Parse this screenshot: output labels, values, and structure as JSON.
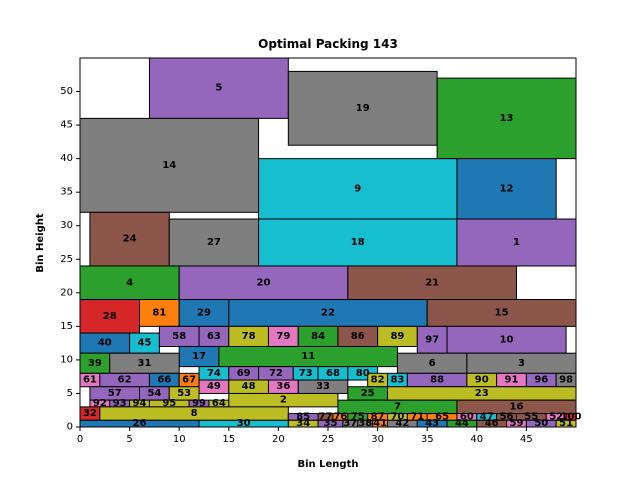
{
  "chart_data": {
    "type": "rectangle-packing",
    "title": "Optimal Packing 143",
    "xlabel": "Bin Length",
    "ylabel": "Bin Height",
    "xlim": [
      0,
      50
    ],
    "ylim": [
      0,
      55
    ],
    "xticks": [
      0,
      5,
      10,
      15,
      20,
      25,
      30,
      35,
      40,
      45
    ],
    "yticks": [
      0,
      5,
      10,
      15,
      20,
      25,
      30,
      35,
      40,
      45,
      50
    ],
    "grid": false,
    "rects": [
      {
        "id": "5",
        "x": 7,
        "y": 46,
        "w": 14,
        "h": 9,
        "color": "#9467bd"
      },
      {
        "id": "19",
        "x": 21,
        "y": 42,
        "w": 15,
        "h": 11,
        "color": "#7f7f7f"
      },
      {
        "id": "13",
        "x": 36,
        "y": 40,
        "w": 14,
        "h": 12,
        "color": "#2ca02c"
      },
      {
        "id": "14",
        "x": 0,
        "y": 32,
        "w": 18,
        "h": 14,
        "color": "#7f7f7f"
      },
      {
        "id": "9",
        "x": 18,
        "y": 31,
        "w": 20,
        "h": 9,
        "color": "#17becf"
      },
      {
        "id": "12",
        "x": 38,
        "y": 31,
        "w": 10,
        "h": 9,
        "color": "#1f77b4"
      },
      {
        "id": "24",
        "x": 1,
        "y": 24,
        "w": 8,
        "h": 8,
        "color": "#8c564b"
      },
      {
        "id": "27",
        "x": 9,
        "y": 24,
        "w": 9,
        "h": 7,
        "color": "#7f7f7f"
      },
      {
        "id": "18",
        "x": 18,
        "y": 24,
        "w": 20,
        "h": 7,
        "color": "#17becf"
      },
      {
        "id": "1",
        "x": 38,
        "y": 24,
        "w": 12,
        "h": 7,
        "color": "#9467bd"
      },
      {
        "id": "4",
        "x": 0,
        "y": 19,
        "w": 10,
        "h": 5,
        "color": "#2ca02c"
      },
      {
        "id": "20",
        "x": 10,
        "y": 19,
        "w": 17,
        "h": 5,
        "color": "#9467bd"
      },
      {
        "id": "21",
        "x": 27,
        "y": 19,
        "w": 17,
        "h": 5,
        "color": "#8c564b"
      },
      {
        "id": "28",
        "x": 0,
        "y": 14,
        "w": 6,
        "h": 5,
        "color": "#d62728"
      },
      {
        "id": "81",
        "x": 6,
        "y": 15,
        "w": 4,
        "h": 4,
        "color": "#ff7f0e"
      },
      {
        "id": "29",
        "x": 10,
        "y": 15,
        "w": 5,
        "h": 4,
        "color": "#1f77b4"
      },
      {
        "id": "22",
        "x": 15,
        "y": 15,
        "w": 20,
        "h": 4,
        "color": "#1f77b4"
      },
      {
        "id": "15",
        "x": 35,
        "y": 15,
        "w": 15,
        "h": 4,
        "color": "#8c564b"
      },
      {
        "id": "40",
        "x": 0,
        "y": 11,
        "w": 5,
        "h": 3,
        "color": "#1f77b4"
      },
      {
        "id": "45",
        "x": 5,
        "y": 11,
        "w": 3,
        "h": 3,
        "color": "#17becf"
      },
      {
        "id": "58",
        "x": 8,
        "y": 12,
        "w": 4,
        "h": 3,
        "color": "#9467bd"
      },
      {
        "id": "63",
        "x": 12,
        "y": 12,
        "w": 3,
        "h": 3,
        "color": "#9467bd"
      },
      {
        "id": "78",
        "x": 15,
        "y": 12,
        "w": 4,
        "h": 3,
        "color": "#bcbd22"
      },
      {
        "id": "79",
        "x": 19,
        "y": 12,
        "w": 3,
        "h": 3,
        "color": "#e377c2"
      },
      {
        "id": "84",
        "x": 22,
        "y": 12,
        "w": 4,
        "h": 3,
        "color": "#2ca02c"
      },
      {
        "id": "86",
        "x": 26,
        "y": 12,
        "w": 4,
        "h": 3,
        "color": "#8c564b"
      },
      {
        "id": "89",
        "x": 30,
        "y": 12,
        "w": 4,
        "h": 3,
        "color": "#bcbd22"
      },
      {
        "id": "97",
        "x": 34,
        "y": 11,
        "w": 3,
        "h": 4,
        "color": "#9467bd"
      },
      {
        "id": "10",
        "x": 37,
        "y": 11,
        "w": 12,
        "h": 4,
        "color": "#9467bd"
      },
      {
        "id": "17",
        "x": 10,
        "y": 9,
        "w": 4,
        "h": 3,
        "color": "#1f77b4"
      },
      {
        "id": "11",
        "x": 14,
        "y": 9,
        "w": 18,
        "h": 3,
        "color": "#2ca02c"
      },
      {
        "id": "39",
        "x": 0,
        "y": 8,
        "w": 3,
        "h": 3,
        "color": "#2ca02c"
      },
      {
        "id": "31",
        "x": 3,
        "y": 8,
        "w": 7,
        "h": 3,
        "color": "#7f7f7f"
      },
      {
        "id": "6",
        "x": 32,
        "y": 8,
        "w": 7,
        "h": 3,
        "color": "#7f7f7f"
      },
      {
        "id": "3",
        "x": 39,
        "y": 8,
        "w": 11,
        "h": 3,
        "color": "#7f7f7f"
      },
      {
        "id": "74",
        "x": 12,
        "y": 7,
        "w": 3,
        "h": 2,
        "color": "#17becf"
      },
      {
        "id": "69",
        "x": 15,
        "y": 7,
        "w": 3,
        "h": 2,
        "color": "#9467bd"
      },
      {
        "id": "72",
        "x": 18,
        "y": 7,
        "w": 3.5,
        "h": 2,
        "color": "#9467bd"
      },
      {
        "id": "73",
        "x": 21.5,
        "y": 7,
        "w": 2.5,
        "h": 2,
        "color": "#17becf"
      },
      {
        "id": "68",
        "x": 24,
        "y": 7,
        "w": 3,
        "h": 2,
        "color": "#17becf"
      },
      {
        "id": "80",
        "x": 27,
        "y": 7,
        "w": 3,
        "h": 2,
        "color": "#17becf"
      },
      {
        "id": "61",
        "x": 0,
        "y": 6,
        "w": 2,
        "h": 2,
        "color": "#e377c2"
      },
      {
        "id": "62",
        "x": 2,
        "y": 6,
        "w": 5,
        "h": 2,
        "color": "#9467bd"
      },
      {
        "id": "66",
        "x": 7,
        "y": 6,
        "w": 3,
        "h": 2,
        "color": "#1f77b4"
      },
      {
        "id": "67",
        "x": 10,
        "y": 6,
        "w": 2,
        "h": 2,
        "color": "#ff7f0e"
      },
      {
        "id": "82",
        "x": 29,
        "y": 6,
        "w": 2,
        "h": 2,
        "color": "#bcbd22"
      },
      {
        "id": "83",
        "x": 31,
        "y": 6,
        "w": 2,
        "h": 2,
        "color": "#17becf"
      },
      {
        "id": "88",
        "x": 33,
        "y": 6,
        "w": 6,
        "h": 2,
        "color": "#9467bd"
      },
      {
        "id": "90",
        "x": 39,
        "y": 6,
        "w": 3,
        "h": 2,
        "color": "#bcbd22"
      },
      {
        "id": "91",
        "x": 42,
        "y": 6,
        "w": 3,
        "h": 2,
        "color": "#e377c2"
      },
      {
        "id": "96",
        "x": 45,
        "y": 6,
        "w": 3,
        "h": 2,
        "color": "#9467bd"
      },
      {
        "id": "98",
        "x": 48,
        "y": 6,
        "w": 2,
        "h": 2,
        "color": "#7f7f7f"
      },
      {
        "id": "57",
        "x": 1,
        "y": 4,
        "w": 5,
        "h": 2,
        "color": "#9467bd"
      },
      {
        "id": "54",
        "x": 6,
        "y": 4,
        "w": 3,
        "h": 2,
        "color": "#9467bd"
      },
      {
        "id": "53",
        "x": 9,
        "y": 4,
        "w": 3,
        "h": 2,
        "color": "#bcbd22"
      },
      {
        "id": "49",
        "x": 12,
        "y": 5,
        "w": 3,
        "h": 2,
        "color": "#e377c2"
      },
      {
        "id": "48",
        "x": 15,
        "y": 5,
        "w": 4,
        "h": 2,
        "color": "#bcbd22"
      },
      {
        "id": "36",
        "x": 19,
        "y": 5,
        "w": 3,
        "h": 2,
        "color": "#e377c2"
      },
      {
        "id": "33",
        "x": 22,
        "y": 5,
        "w": 5,
        "h": 2,
        "color": "#7f7f7f"
      },
      {
        "id": "25",
        "x": 27,
        "y": 4,
        "w": 4,
        "h": 2,
        "color": "#2ca02c"
      },
      {
        "id": "23",
        "x": 31,
        "y": 4,
        "w": 19,
        "h": 2,
        "color": "#bcbd22"
      },
      {
        "id": "92",
        "x": 1,
        "y": 3,
        "w": 2,
        "h": 1,
        "color": "#e377c2"
      },
      {
        "id": "93",
        "x": 3,
        "y": 3,
        "w": 2,
        "h": 1,
        "color": "#9467bd"
      },
      {
        "id": "94",
        "x": 5,
        "y": 3,
        "w": 2,
        "h": 1,
        "color": "#bcbd22"
      },
      {
        "id": "95",
        "x": 7,
        "y": 3,
        "w": 4,
        "h": 1,
        "color": "#bcbd22"
      },
      {
        "id": "99",
        "x": 11,
        "y": 3,
        "w": 2,
        "h": 1,
        "color": "#9467bd"
      },
      {
        "id": "64",
        "x": 13,
        "y": 3,
        "w": 2,
        "h": 1,
        "color": "#bcbd22"
      },
      {
        "id": "2",
        "x": 15,
        "y": 3,
        "w": 11,
        "h": 2,
        "color": "#bcbd22"
      },
      {
        "id": "7",
        "x": 26,
        "y": 2,
        "w": 12,
        "h": 2,
        "color": "#2ca02c"
      },
      {
        "id": "16",
        "x": 38,
        "y": 2,
        "w": 12,
        "h": 2,
        "color": "#8c564b"
      },
      {
        "id": "32",
        "x": 0,
        "y": 1,
        "w": 2,
        "h": 2,
        "color": "#d62728"
      },
      {
        "id": "8",
        "x": 2,
        "y": 1,
        "w": 19,
        "h": 2,
        "color": "#bcbd22"
      },
      {
        "id": "85",
        "x": 21,
        "y": 1,
        "w": 3,
        "h": 1,
        "color": "#9467bd"
      },
      {
        "id": "77",
        "x": 24,
        "y": 1,
        "w": 1.5,
        "h": 1,
        "color": "#8c564b"
      },
      {
        "id": "76",
        "x": 25.5,
        "y": 1,
        "w": 1.5,
        "h": 1,
        "color": "#ff7f0e"
      },
      {
        "id": "75",
        "x": 27,
        "y": 1,
        "w": 2,
        "h": 1,
        "color": "#2ca02c"
      },
      {
        "id": "87",
        "x": 29,
        "y": 1,
        "w": 2,
        "h": 1,
        "color": "#ff7f0e"
      },
      {
        "id": "70",
        "x": 31,
        "y": 1,
        "w": 2,
        "h": 1,
        "color": "#bcbd22"
      },
      {
        "id": "71",
        "x": 33,
        "y": 1,
        "w": 2,
        "h": 1,
        "color": "#ff7f0e"
      },
      {
        "id": "65",
        "x": 35,
        "y": 1,
        "w": 3,
        "h": 1,
        "color": "#ff7f0e"
      },
      {
        "id": "60",
        "x": 38,
        "y": 1,
        "w": 2,
        "h": 1,
        "color": "#e377c2"
      },
      {
        "id": "47",
        "x": 40,
        "y": 1,
        "w": 2,
        "h": 1,
        "color": "#17becf"
      },
      {
        "id": "56",
        "x": 42,
        "y": 1,
        "w": 2,
        "h": 1,
        "color": "#8c564b"
      },
      {
        "id": "55",
        "x": 44,
        "y": 1,
        "w": 3,
        "h": 1,
        "color": "#8c564b"
      },
      {
        "id": "52",
        "x": 47,
        "y": 1,
        "w": 2,
        "h": 1,
        "color": "#e377c2"
      },
      {
        "id": "100",
        "x": 49,
        "y": 1,
        "w": 1,
        "h": 1,
        "color": "#d62728"
      },
      {
        "id": "26",
        "x": 0,
        "y": 0,
        "w": 12,
        "h": 1,
        "color": "#1f77b4"
      },
      {
        "id": "30",
        "x": 12,
        "y": 0,
        "w": 9,
        "h": 1,
        "color": "#17becf"
      },
      {
        "id": "34",
        "x": 21,
        "y": 0,
        "w": 3,
        "h": 1,
        "color": "#bcbd22"
      },
      {
        "id": "35",
        "x": 24,
        "y": 0,
        "w": 2.5,
        "h": 1,
        "color": "#9467bd"
      },
      {
        "id": "37",
        "x": 26.5,
        "y": 0,
        "w": 1.5,
        "h": 1,
        "color": "#7f7f7f"
      },
      {
        "id": "38",
        "x": 28,
        "y": 0,
        "w": 1.5,
        "h": 1,
        "color": "#7f7f7f"
      },
      {
        "id": "41",
        "x": 29.5,
        "y": 0,
        "w": 1.5,
        "h": 1,
        "color": "#ff7f0e"
      },
      {
        "id": "42",
        "x": 31,
        "y": 0,
        "w": 3,
        "h": 1,
        "color": "#7f7f7f"
      },
      {
        "id": "43",
        "x": 34,
        "y": 0,
        "w": 3,
        "h": 1,
        "color": "#1f77b4"
      },
      {
        "id": "44",
        "x": 37,
        "y": 0,
        "w": 3,
        "h": 1,
        "color": "#2ca02c"
      },
      {
        "id": "46",
        "x": 40,
        "y": 0,
        "w": 3,
        "h": 1,
        "color": "#8c564b"
      },
      {
        "id": "59",
        "x": 43,
        "y": 0,
        "w": 2,
        "h": 1,
        "color": "#e377c2"
      },
      {
        "id": "50",
        "x": 45,
        "y": 0,
        "w": 3,
        "h": 1,
        "color": "#9467bd"
      },
      {
        "id": "51",
        "x": 48,
        "y": 0,
        "w": 2,
        "h": 1,
        "color": "#bcbd22"
      }
    ]
  }
}
